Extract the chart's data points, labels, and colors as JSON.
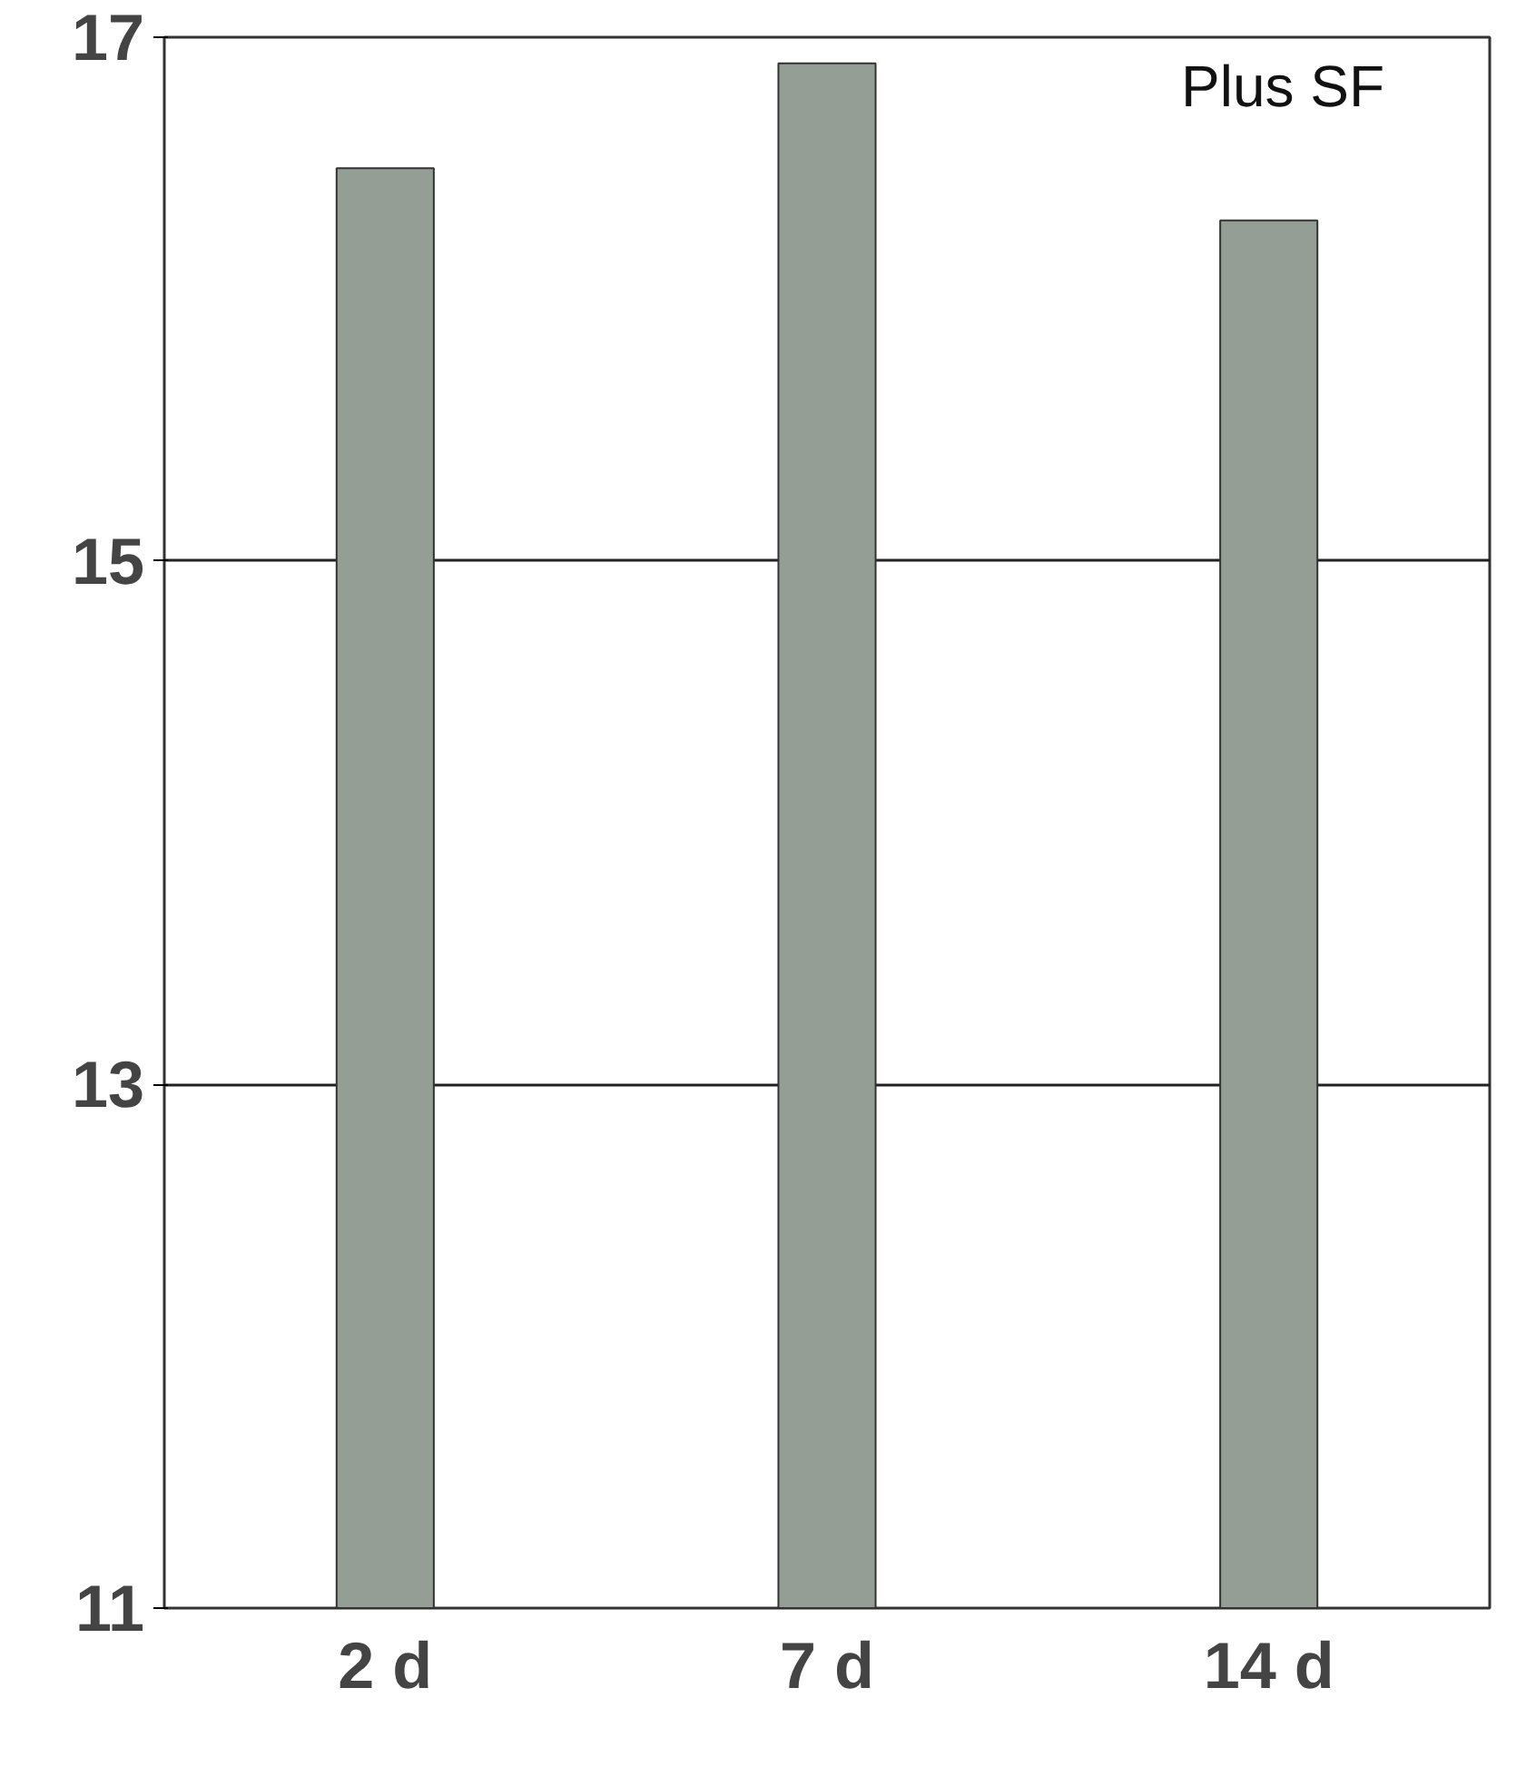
{
  "chart_data": {
    "type": "bar",
    "categories": [
      "2 d",
      "7 d",
      "14 d"
    ],
    "values": [
      16.5,
      16.9,
      16.3
    ],
    "color": "#949e94",
    "ylim": [
      11,
      17
    ],
    "yticks": [
      11,
      13,
      15,
      17
    ],
    "grid": "y",
    "annotations": [
      "Plus SF"
    ]
  }
}
